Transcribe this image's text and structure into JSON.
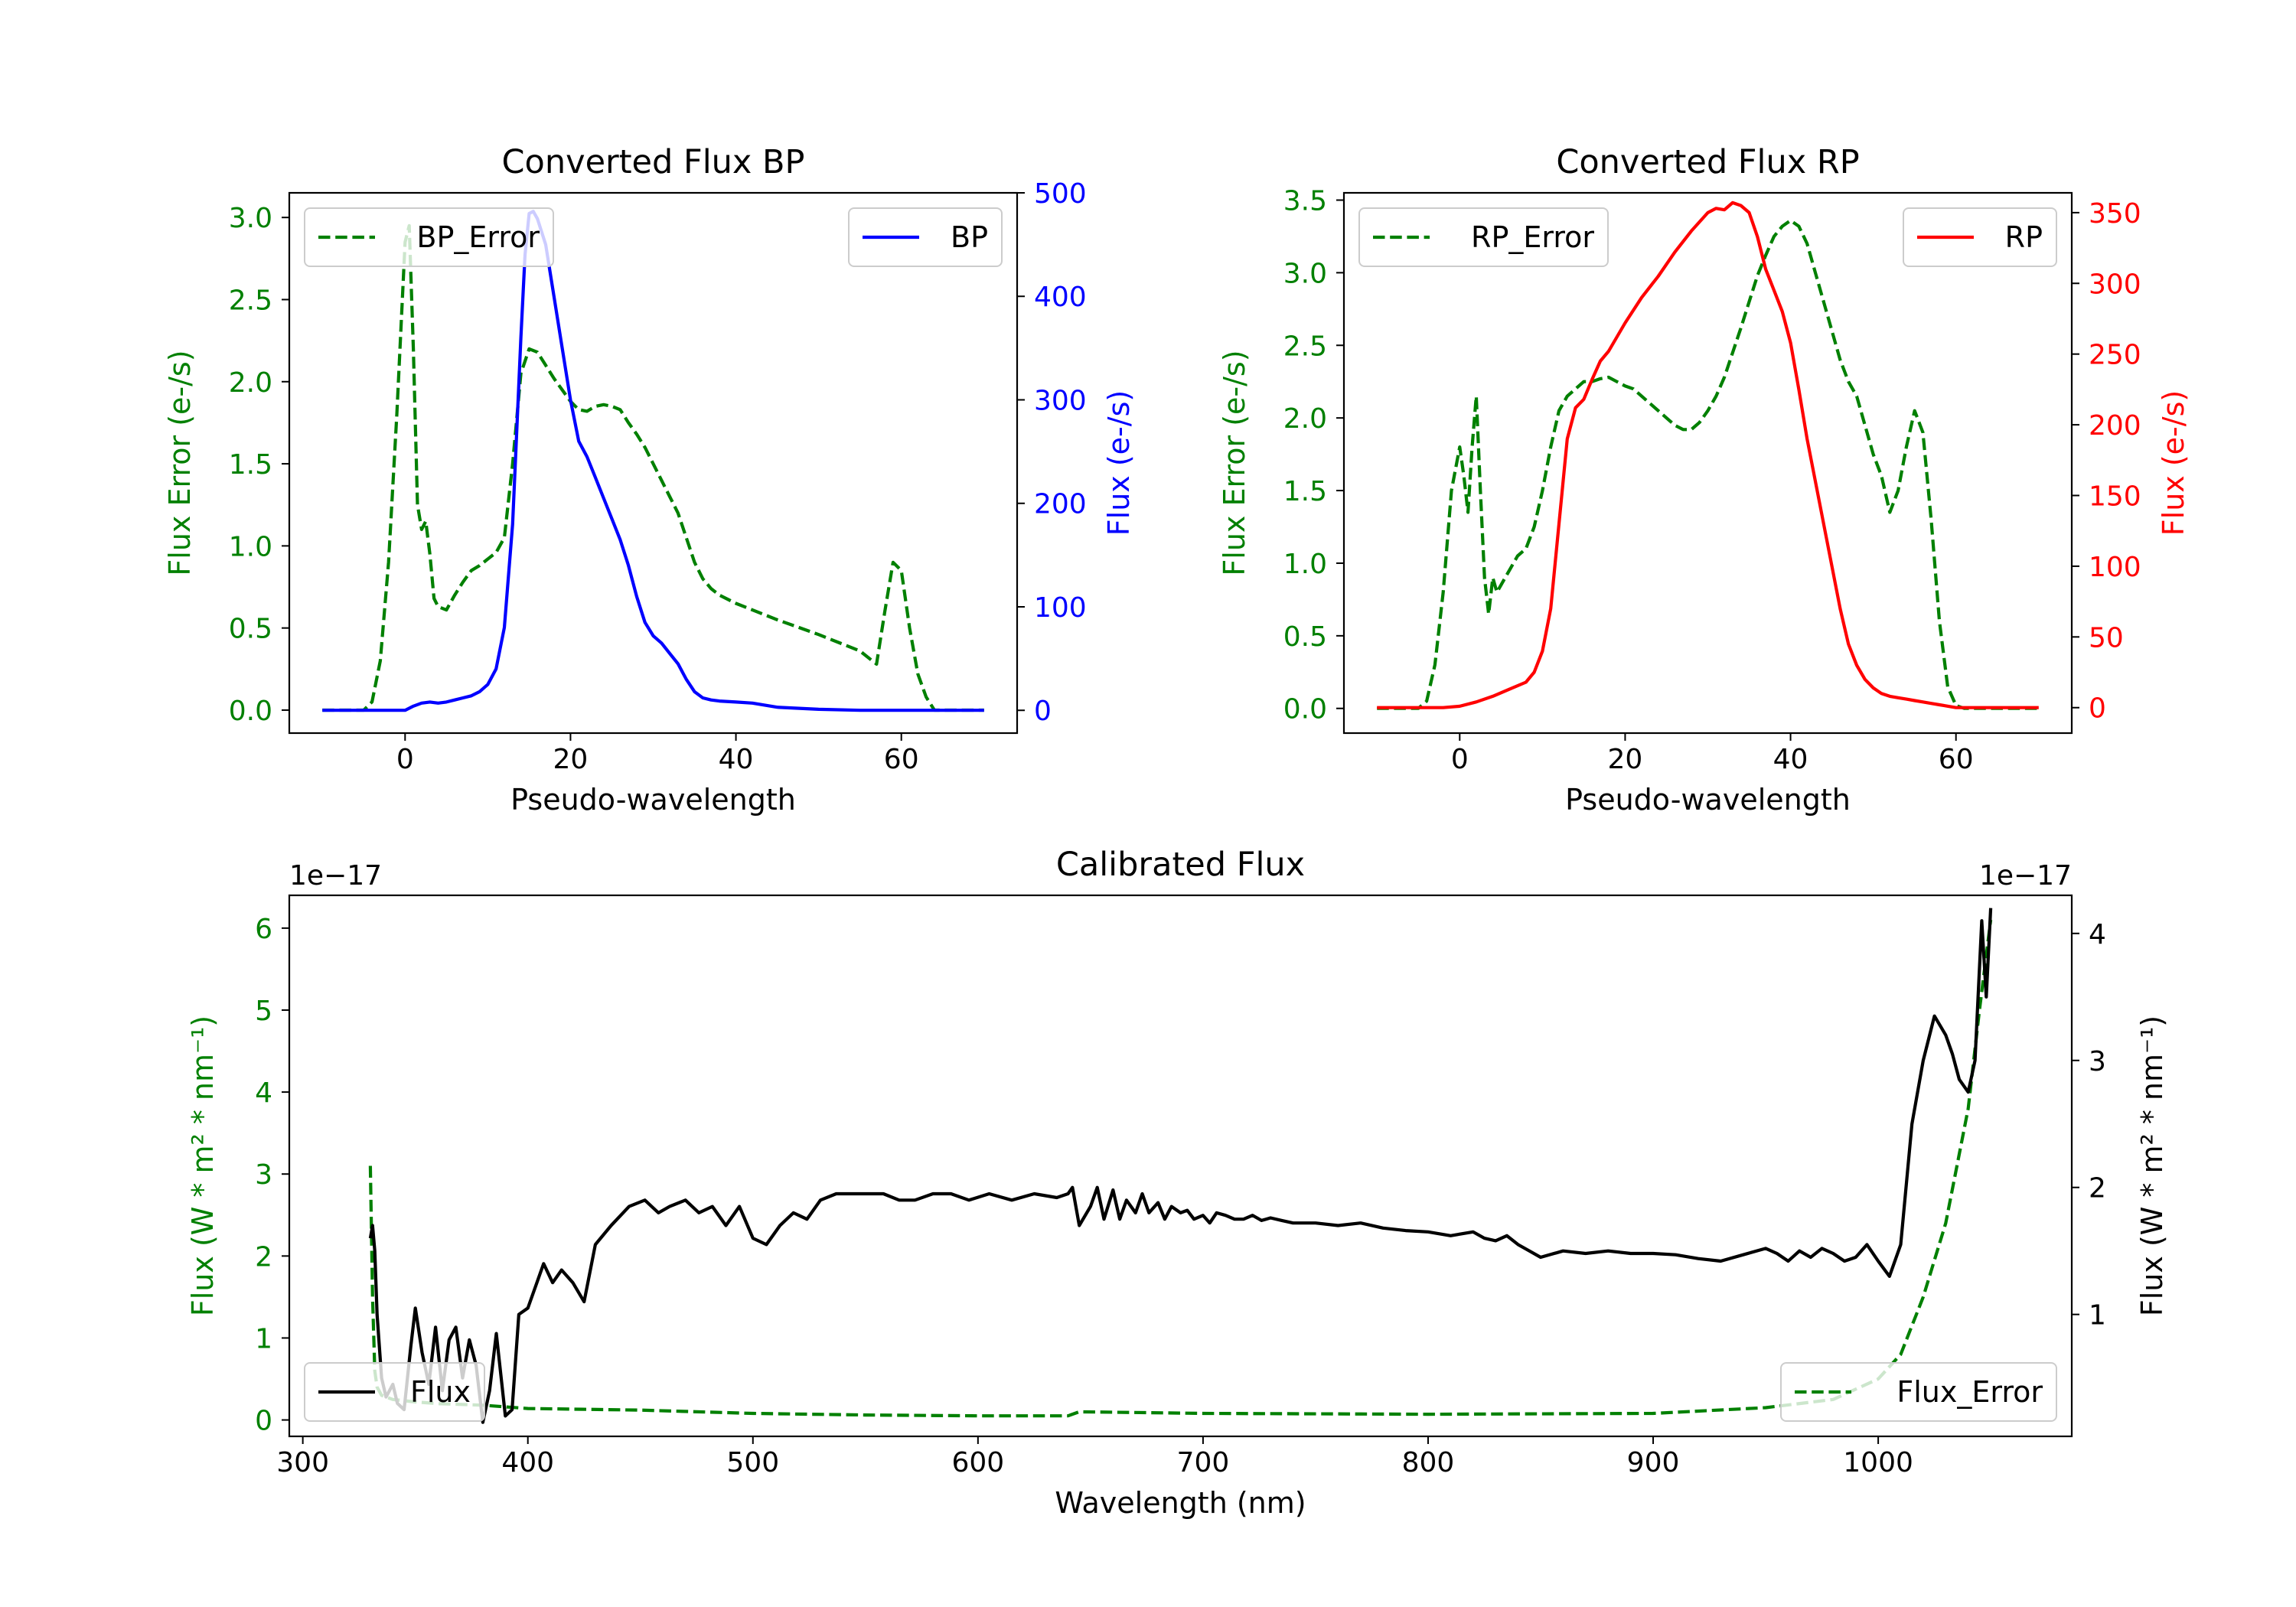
{
  "chart_data": [
    {
      "type": "line",
      "title": "Converted Flux BP",
      "xlabel": "Pseudo-wavelength",
      "ylabel_left": "Flux Error (e-/s)",
      "ylabel_right": "Flux (e-/s)",
      "xlim": [
        -14,
        74
      ],
      "ylim_left": [
        -0.14,
        3.15
      ],
      "ylim_right": [
        -22,
        500
      ],
      "xticks": [
        0,
        20,
        40,
        60
      ],
      "yticks_left": [
        0.0,
        0.5,
        1.0,
        1.5,
        2.0,
        2.5,
        3.0
      ],
      "yticks_right": [
        0,
        100,
        200,
        300,
        400,
        500
      ],
      "xtick_labels": [
        "0",
        "20",
        "40",
        "60"
      ],
      "ytick_labels_left": [
        "0.0",
        "0.5",
        "1.0",
        "1.5",
        "2.0",
        "2.5",
        "3.0"
      ],
      "ytick_labels_right": [
        "0",
        "100",
        "200",
        "300",
        "400",
        "500"
      ],
      "series": [
        {
          "name": "BP_Error",
          "axis": "left",
          "color": "#008000",
          "style": "dashed",
          "legend": "top-left",
          "x": [
            -10,
            -5,
            -4,
            -3,
            -2,
            -1,
            0,
            0.5,
            1,
            1.5,
            2,
            2.5,
            3,
            3.5,
            4,
            5,
            6,
            7,
            8,
            9,
            10,
            11,
            12,
            13,
            14,
            15,
            16,
            17,
            18,
            19,
            20,
            21,
            22,
            23,
            24,
            25,
            26,
            27,
            28,
            29,
            30,
            31,
            32,
            33,
            34,
            35,
            36,
            37,
            38,
            40,
            45,
            50,
            55,
            57,
            58,
            59,
            60,
            61,
            62,
            63,
            64,
            70
          ],
          "values": [
            0.0,
            0.0,
            0.05,
            0.3,
            0.9,
            1.8,
            2.85,
            2.95,
            2.2,
            1.25,
            1.1,
            1.15,
            0.95,
            0.68,
            0.63,
            0.61,
            0.7,
            0.78,
            0.85,
            0.88,
            0.92,
            0.96,
            1.05,
            1.5,
            2.05,
            2.2,
            2.18,
            2.1,
            2.02,
            1.95,
            1.88,
            1.83,
            1.82,
            1.85,
            1.86,
            1.85,
            1.83,
            1.75,
            1.68,
            1.6,
            1.5,
            1.4,
            1.3,
            1.2,
            1.05,
            0.9,
            0.8,
            0.74,
            0.7,
            0.65,
            0.55,
            0.46,
            0.36,
            0.28,
            0.6,
            0.9,
            0.85,
            0.5,
            0.22,
            0.08,
            0.0,
            0.0
          ]
        },
        {
          "name": "BP",
          "axis": "right",
          "color": "#0000ff",
          "style": "solid",
          "legend": "top-right",
          "x": [
            -10,
            0,
            1,
            2,
            3,
            4,
            5,
            6,
            7,
            8,
            9,
            10,
            11,
            12,
            13,
            14,
            14.5,
            15,
            15.5,
            16,
            17,
            18,
            19,
            20,
            21,
            22,
            23,
            24,
            25,
            26,
            27,
            28,
            29,
            30,
            31,
            32,
            33,
            34,
            35,
            36,
            37,
            38,
            40,
            42,
            45,
            50,
            55,
            60,
            65,
            70
          ],
          "values": [
            0,
            0,
            4,
            7,
            8,
            7,
            8,
            10,
            12,
            14,
            18,
            25,
            40,
            80,
            180,
            360,
            440,
            480,
            482,
            475,
            450,
            400,
            350,
            300,
            260,
            245,
            225,
            205,
            185,
            165,
            140,
            110,
            85,
            72,
            65,
            55,
            45,
            30,
            18,
            12,
            10,
            9,
            8,
            7,
            3,
            1,
            0,
            0,
            0,
            0
          ]
        }
      ]
    },
    {
      "type": "line",
      "title": "Converted Flux RP",
      "xlabel": "Pseudo-wavelength",
      "ylabel_left": "Flux Error (e-/s)",
      "ylabel_right": "Flux (e-/s)",
      "xlim": [
        -14,
        74
      ],
      "ylim_left": [
        -0.17,
        3.55
      ],
      "ylim_right": [
        -18,
        364
      ],
      "xticks": [
        0,
        20,
        40,
        60
      ],
      "yticks_left": [
        0.0,
        0.5,
        1.0,
        1.5,
        2.0,
        2.5,
        3.0,
        3.5
      ],
      "yticks_right": [
        0,
        50,
        100,
        150,
        200,
        250,
        300,
        350
      ],
      "xtick_labels": [
        "0",
        "20",
        "40",
        "60"
      ],
      "ytick_labels_left": [
        "0.0",
        "0.5",
        "1.0",
        "1.5",
        "2.0",
        "2.5",
        "3.0",
        "3.5"
      ],
      "ytick_labels_right": [
        "0",
        "50",
        "100",
        "150",
        "200",
        "250",
        "300",
        "350"
      ],
      "series": [
        {
          "name": "RP_Error",
          "axis": "left",
          "color": "#008000",
          "style": "dashed",
          "legend": "top-left",
          "x": [
            -10,
            -5,
            -4,
            -3,
            -2,
            -1,
            0,
            0.5,
            1,
            1.5,
            2,
            2.5,
            3,
            3.5,
            4,
            4.5,
            5,
            6,
            7,
            8,
            9,
            10,
            11,
            12,
            13,
            14,
            15,
            16,
            17,
            18,
            19,
            20,
            21,
            22,
            23,
            24,
            25,
            26,
            27,
            28,
            29,
            30,
            31,
            32,
            33,
            34,
            35,
            36,
            37,
            38,
            39,
            40,
            41,
            42,
            43,
            44,
            45,
            46,
            47,
            48,
            49,
            50,
            51,
            52,
            53,
            54,
            55,
            56,
            57,
            58,
            59,
            60,
            61,
            62,
            63,
            64,
            65,
            70
          ],
          "values": [
            0.0,
            0.0,
            0.05,
            0.3,
            0.8,
            1.5,
            1.8,
            1.6,
            1.35,
            1.8,
            2.15,
            1.5,
            0.9,
            0.65,
            0.9,
            0.8,
            0.85,
            0.95,
            1.05,
            1.1,
            1.25,
            1.5,
            1.8,
            2.05,
            2.15,
            2.2,
            2.25,
            2.25,
            2.27,
            2.28,
            2.25,
            2.22,
            2.2,
            2.15,
            2.1,
            2.05,
            2.0,
            1.95,
            1.92,
            1.92,
            1.97,
            2.05,
            2.15,
            2.28,
            2.45,
            2.62,
            2.8,
            2.98,
            3.12,
            3.25,
            3.32,
            3.36,
            3.32,
            3.2,
            3.0,
            2.8,
            2.6,
            2.4,
            2.25,
            2.15,
            1.95,
            1.75,
            1.6,
            1.35,
            1.5,
            1.8,
            2.05,
            1.9,
            1.3,
            0.6,
            0.15,
            0.02,
            0.0,
            0.0,
            0.0,
            0.0,
            0.0,
            0.0
          ]
        },
        {
          "name": "RP",
          "axis": "right",
          "color": "#ff0000",
          "style": "solid",
          "legend": "top-right",
          "x": [
            -10,
            -2,
            0,
            2,
            4,
            6,
            8,
            9,
            10,
            11,
            12,
            13,
            14,
            15,
            16,
            17,
            18,
            19,
            20,
            22,
            24,
            26,
            28,
            30,
            31,
            32,
            33,
            34,
            35,
            36,
            37,
            38,
            39,
            40,
            41,
            42,
            43,
            44,
            45,
            46,
            47,
            48,
            49,
            50,
            51,
            52,
            53,
            54,
            55,
            56,
            57,
            58,
            60,
            62,
            64,
            70
          ],
          "values": [
            0,
            0,
            1,
            4,
            8,
            13,
            18,
            25,
            40,
            70,
            130,
            190,
            212,
            218,
            232,
            245,
            252,
            262,
            272,
            290,
            305,
            322,
            337,
            350,
            353,
            352,
            357,
            355,
            350,
            333,
            310,
            295,
            280,
            258,
            225,
            190,
            160,
            130,
            100,
            70,
            45,
            30,
            20,
            14,
            10,
            8,
            7,
            6,
            5,
            4,
            3,
            2,
            0,
            0,
            0,
            0
          ]
        }
      ]
    },
    {
      "type": "line",
      "title": "Calibrated Flux",
      "xlabel": "Wavelength (nm)",
      "ylabel_left": "Flux (W * m² * nm⁻¹)",
      "ylabel_right": "Flux (W * m² * nm⁻¹)",
      "offset_left": "1e−17",
      "offset_right": "1e−17",
      "xlim": [
        294,
        1086
      ],
      "ylim_left": [
        -0.2,
        6.4
      ],
      "ylim_right": [
        0.04,
        4.3
      ],
      "xticks": [
        300,
        400,
        500,
        600,
        700,
        800,
        900,
        1000
      ],
      "yticks_left": [
        0,
        1,
        2,
        3,
        4,
        5,
        6
      ],
      "yticks_right": [
        1,
        2,
        3,
        4
      ],
      "xtick_labels": [
        "300",
        "400",
        "500",
        "600",
        "700",
        "800",
        "900",
        "1000"
      ],
      "ytick_labels_left": [
        "0",
        "1",
        "2",
        "3",
        "4",
        "5",
        "6"
      ],
      "ytick_labels_right": [
        "1",
        "2",
        "3",
        "4"
      ],
      "series": [
        {
          "name": "Flux_Error",
          "axis": "left",
          "color": "#008000",
          "style": "dashed",
          "legend": "bottom-right",
          "x": [
            330,
            331,
            332,
            333,
            335,
            340,
            350,
            360,
            380,
            400,
            450,
            500,
            550,
            600,
            640,
            645,
            700,
            800,
            900,
            950,
            980,
            1000,
            1010,
            1020,
            1030,
            1040,
            1045,
            1050
          ],
          "values": [
            3.1,
            1.5,
            0.6,
            0.4,
            0.3,
            0.25,
            0.22,
            0.2,
            0.18,
            0.14,
            0.12,
            0.08,
            0.06,
            0.05,
            0.05,
            0.1,
            0.08,
            0.07,
            0.08,
            0.15,
            0.25,
            0.5,
            0.8,
            1.5,
            2.4,
            3.8,
            5.0,
            6.1
          ]
        },
        {
          "name": "Flux",
          "axis": "right",
          "color": "#000000",
          "style": "solid",
          "legend": "bottom-left",
          "x": [
            330,
            331,
            332,
            333,
            335,
            337,
            340,
            342,
            345,
            348,
            350,
            353,
            356,
            359,
            362,
            365,
            368,
            371,
            374,
            377,
            380,
            383,
            386,
            390,
            393,
            396,
            400,
            404,
            407,
            411,
            415,
            420,
            425,
            430,
            437,
            445,
            452,
            458,
            463,
            470,
            476,
            482,
            488,
            494,
            500,
            506,
            512,
            518,
            524,
            530,
            537,
            544,
            551,
            558,
            565,
            572,
            580,
            588,
            596,
            605,
            615,
            625,
            635,
            640,
            642,
            645,
            650,
            653,
            656,
            660,
            663,
            666,
            670,
            673,
            676,
            680,
            683,
            686,
            690,
            693,
            696,
            700,
            703,
            706,
            710,
            714,
            718,
            722,
            726,
            730,
            735,
            740,
            745,
            750,
            760,
            770,
            780,
            790,
            800,
            810,
            820,
            825,
            830,
            835,
            840,
            845,
            850,
            860,
            870,
            880,
            890,
            900,
            910,
            920,
            930,
            940,
            950,
            955,
            960,
            965,
            970,
            975,
            980,
            985,
            990,
            995,
            1000,
            1005,
            1010,
            1015,
            1020,
            1025,
            1030,
            1033,
            1036,
            1040,
            1043,
            1046,
            1048,
            1050
          ],
          "values": [
            1.6,
            1.7,
            1.5,
            1.0,
            0.5,
            0.35,
            0.45,
            0.3,
            0.25,
            0.75,
            1.05,
            0.7,
            0.45,
            0.9,
            0.4,
            0.8,
            0.9,
            0.5,
            0.8,
            0.6,
            0.15,
            0.4,
            0.85,
            0.2,
            0.25,
            1.0,
            1.05,
            1.25,
            1.4,
            1.25,
            1.35,
            1.25,
            1.1,
            1.55,
            1.7,
            1.85,
            1.9,
            1.8,
            1.85,
            1.9,
            1.8,
            1.85,
            1.7,
            1.85,
            1.6,
            1.55,
            1.7,
            1.8,
            1.75,
            1.9,
            1.95,
            1.95,
            1.95,
            1.95,
            1.9,
            1.9,
            1.95,
            1.95,
            1.9,
            1.95,
            1.9,
            1.95,
            1.92,
            1.95,
            2.0,
            1.7,
            1.85,
            2.0,
            1.75,
            1.98,
            1.75,
            1.9,
            1.8,
            1.95,
            1.8,
            1.88,
            1.75,
            1.85,
            1.8,
            1.82,
            1.75,
            1.78,
            1.72,
            1.8,
            1.78,
            1.75,
            1.75,
            1.78,
            1.74,
            1.76,
            1.74,
            1.72,
            1.72,
            1.72,
            1.7,
            1.72,
            1.68,
            1.66,
            1.65,
            1.62,
            1.65,
            1.6,
            1.58,
            1.62,
            1.55,
            1.5,
            1.45,
            1.5,
            1.48,
            1.5,
            1.48,
            1.48,
            1.47,
            1.44,
            1.42,
            1.47,
            1.52,
            1.48,
            1.42,
            1.5,
            1.45,
            1.52,
            1.48,
            1.42,
            1.45,
            1.55,
            1.42,
            1.3,
            1.55,
            2.5,
            3.0,
            3.35,
            3.2,
            3.05,
            2.85,
            2.75,
            3.0,
            4.1,
            3.5,
            4.2
          ]
        }
      ]
    }
  ]
}
